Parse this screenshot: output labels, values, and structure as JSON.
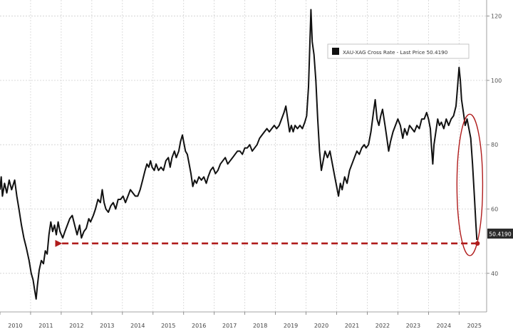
{
  "chart_data": {
    "type": "line",
    "legend": {
      "label": "XAU-XAG Cross Rate - Last Price 50.4190",
      "placement": "top-right"
    },
    "last_price_label": "50.4190",
    "y_ticks": [
      40,
      60,
      80,
      100,
      120
    ],
    "x_ticks": [
      "2010",
      "2011",
      "2012",
      "2013",
      "2014",
      "2015",
      "2016",
      "2017",
      "2018",
      "2019",
      "2020",
      "2021",
      "2022",
      "2023",
      "2024",
      "2025"
    ],
    "xlim": [
      2010.0,
      2025.9
    ],
    "ylim": [
      28,
      125
    ],
    "grid": true,
    "line_color": "#111111",
    "annotation_color": "#b01c1c",
    "annotation": {
      "type": "dashed-arrow",
      "from": [
        2025.6,
        49.3
      ],
      "to": [
        2011.8,
        49.3
      ]
    },
    "highlight": {
      "type": "ellipse",
      "center": [
        2025.35,
        67.5
      ],
      "rx_years": 0.42,
      "ry_units": 22
    },
    "series": [
      {
        "points": [
          [
            2010.0,
            66
          ],
          [
            2010.04,
            70
          ],
          [
            2010.08,
            64
          ],
          [
            2010.15,
            68
          ],
          [
            2010.22,
            65
          ],
          [
            2010.3,
            69
          ],
          [
            2010.38,
            66
          ],
          [
            2010.48,
            69
          ],
          [
            2010.55,
            64
          ],
          [
            2010.62,
            60
          ],
          [
            2010.7,
            55
          ],
          [
            2010.78,
            51
          ],
          [
            2010.86,
            48
          ],
          [
            2010.95,
            44
          ],
          [
            2011.02,
            40
          ],
          [
            2011.08,
            38
          ],
          [
            2011.13,
            35
          ],
          [
            2011.18,
            32
          ],
          [
            2011.22,
            36
          ],
          [
            2011.28,
            41
          ],
          [
            2011.35,
            44
          ],
          [
            2011.42,
            43
          ],
          [
            2011.48,
            47
          ],
          [
            2011.54,
            46
          ],
          [
            2011.6,
            52
          ],
          [
            2011.66,
            56
          ],
          [
            2011.72,
            53
          ],
          [
            2011.78,
            55
          ],
          [
            2011.84,
            52
          ],
          [
            2011.9,
            56
          ],
          [
            2011.96,
            53
          ],
          [
            2012.05,
            51
          ],
          [
            2012.12,
            53
          ],
          [
            2012.2,
            55
          ],
          [
            2012.28,
            57
          ],
          [
            2012.36,
            58
          ],
          [
            2012.44,
            55
          ],
          [
            2012.52,
            52
          ],
          [
            2012.6,
            55
          ],
          [
            2012.66,
            51
          ],
          [
            2012.74,
            53
          ],
          [
            2012.82,
            54
          ],
          [
            2012.9,
            57
          ],
          [
            2012.96,
            56
          ],
          [
            2013.05,
            58
          ],
          [
            2013.12,
            60
          ],
          [
            2013.2,
            63
          ],
          [
            2013.28,
            62
          ],
          [
            2013.34,
            66
          ],
          [
            2013.4,
            62
          ],
          [
            2013.46,
            60
          ],
          [
            2013.54,
            59
          ],
          [
            2013.62,
            61
          ],
          [
            2013.7,
            62
          ],
          [
            2013.78,
            60
          ],
          [
            2013.86,
            63
          ],
          [
            2013.94,
            63
          ],
          [
            2014.02,
            64
          ],
          [
            2014.1,
            62
          ],
          [
            2014.18,
            64
          ],
          [
            2014.26,
            66
          ],
          [
            2014.34,
            65
          ],
          [
            2014.42,
            64
          ],
          [
            2014.5,
            64
          ],
          [
            2014.58,
            66
          ],
          [
            2014.66,
            69
          ],
          [
            2014.74,
            72
          ],
          [
            2014.8,
            74
          ],
          [
            2014.86,
            73
          ],
          [
            2014.92,
            75
          ],
          [
            2014.97,
            73
          ],
          [
            2015.04,
            72
          ],
          [
            2015.1,
            74
          ],
          [
            2015.18,
            72
          ],
          [
            2015.26,
            73
          ],
          [
            2015.34,
            72
          ],
          [
            2015.42,
            75
          ],
          [
            2015.5,
            76
          ],
          [
            2015.56,
            73
          ],
          [
            2015.62,
            76
          ],
          [
            2015.7,
            78
          ],
          [
            2015.76,
            76
          ],
          [
            2015.84,
            78
          ],
          [
            2015.9,
            81
          ],
          [
            2015.96,
            83
          ],
          [
            2016.0,
            81
          ],
          [
            2016.06,
            78
          ],
          [
            2016.12,
            77
          ],
          [
            2016.18,
            74
          ],
          [
            2016.24,
            71
          ],
          [
            2016.3,
            67
          ],
          [
            2016.36,
            69
          ],
          [
            2016.42,
            68
          ],
          [
            2016.5,
            70
          ],
          [
            2016.58,
            69
          ],
          [
            2016.66,
            70
          ],
          [
            2016.74,
            68
          ],
          [
            2016.8,
            70
          ],
          [
            2016.88,
            72
          ],
          [
            2016.96,
            73
          ],
          [
            2017.04,
            71
          ],
          [
            2017.12,
            72
          ],
          [
            2017.2,
            74
          ],
          [
            2017.28,
            75
          ],
          [
            2017.36,
            76
          ],
          [
            2017.44,
            74
          ],
          [
            2017.52,
            75
          ],
          [
            2017.6,
            76
          ],
          [
            2017.68,
            77
          ],
          [
            2017.76,
            78
          ],
          [
            2017.84,
            78
          ],
          [
            2017.92,
            77
          ],
          [
            2018.0,
            79
          ],
          [
            2018.08,
            79
          ],
          [
            2018.16,
            80
          ],
          [
            2018.24,
            78
          ],
          [
            2018.32,
            79
          ],
          [
            2018.4,
            80
          ],
          [
            2018.48,
            82
          ],
          [
            2018.56,
            83
          ],
          [
            2018.64,
            84
          ],
          [
            2018.72,
            85
          ],
          [
            2018.8,
            84
          ],
          [
            2018.88,
            85
          ],
          [
            2018.96,
            86
          ],
          [
            2019.04,
            85
          ],
          [
            2019.12,
            86
          ],
          [
            2019.2,
            88
          ],
          [
            2019.28,
            90
          ],
          [
            2019.34,
            92
          ],
          [
            2019.4,
            88
          ],
          [
            2019.46,
            84
          ],
          [
            2019.52,
            86
          ],
          [
            2019.58,
            84
          ],
          [
            2019.64,
            86
          ],
          [
            2019.72,
            85
          ],
          [
            2019.8,
            86
          ],
          [
            2019.88,
            85
          ],
          [
            2019.96,
            87
          ],
          [
            2020.02,
            89
          ],
          [
            2020.08,
            98
          ],
          [
            2020.12,
            110
          ],
          [
            2020.16,
            122
          ],
          [
            2020.2,
            112
          ],
          [
            2020.26,
            108
          ],
          [
            2020.32,
            100
          ],
          [
            2020.38,
            88
          ],
          [
            2020.44,
            78
          ],
          [
            2020.5,
            72
          ],
          [
            2020.56,
            75
          ],
          [
            2020.62,
            78
          ],
          [
            2020.7,
            76
          ],
          [
            2020.78,
            78
          ],
          [
            2020.86,
            74
          ],
          [
            2020.94,
            70
          ],
          [
            2021.0,
            67
          ],
          [
            2021.06,
            64
          ],
          [
            2021.12,
            68
          ],
          [
            2021.18,
            66
          ],
          [
            2021.26,
            70
          ],
          [
            2021.34,
            68
          ],
          [
            2021.42,
            72
          ],
          [
            2021.5,
            74
          ],
          [
            2021.58,
            76
          ],
          [
            2021.66,
            78
          ],
          [
            2021.74,
            77
          ],
          [
            2021.82,
            79
          ],
          [
            2021.9,
            80
          ],
          [
            2021.96,
            79
          ],
          [
            2022.04,
            80
          ],
          [
            2022.12,
            84
          ],
          [
            2022.2,
            90
          ],
          [
            2022.26,
            94
          ],
          [
            2022.32,
            88
          ],
          [
            2022.38,
            86
          ],
          [
            2022.44,
            89
          ],
          [
            2022.5,
            91
          ],
          [
            2022.58,
            86
          ],
          [
            2022.64,
            82
          ],
          [
            2022.7,
            78
          ],
          [
            2022.76,
            81
          ],
          [
            2022.84,
            84
          ],
          [
            2022.92,
            86
          ],
          [
            2023.0,
            88
          ],
          [
            2023.08,
            86
          ],
          [
            2023.16,
            82
          ],
          [
            2023.22,
            85
          ],
          [
            2023.3,
            83
          ],
          [
            2023.38,
            86
          ],
          [
            2023.46,
            85
          ],
          [
            2023.54,
            84
          ],
          [
            2023.62,
            86
          ],
          [
            2023.7,
            85
          ],
          [
            2023.78,
            88
          ],
          [
            2023.86,
            88
          ],
          [
            2023.94,
            90
          ],
          [
            2024.0,
            88
          ],
          [
            2024.06,
            85
          ],
          [
            2024.1,
            79
          ],
          [
            2024.14,
            74
          ],
          [
            2024.18,
            80
          ],
          [
            2024.24,
            84
          ],
          [
            2024.3,
            88
          ],
          [
            2024.36,
            86
          ],
          [
            2024.42,
            87
          ],
          [
            2024.5,
            85
          ],
          [
            2024.58,
            88
          ],
          [
            2024.66,
            86
          ],
          [
            2024.74,
            88
          ],
          [
            2024.82,
            89
          ],
          [
            2024.9,
            92
          ],
          [
            2024.95,
            98
          ],
          [
            2025.0,
            104
          ],
          [
            2025.04,
            100
          ],
          [
            2025.08,
            94
          ],
          [
            2025.14,
            90
          ],
          [
            2025.2,
            86
          ],
          [
            2025.26,
            88
          ],
          [
            2025.32,
            85
          ],
          [
            2025.38,
            82
          ],
          [
            2025.44,
            74
          ],
          [
            2025.5,
            64
          ],
          [
            2025.55,
            55
          ],
          [
            2025.58,
            50.4
          ]
        ]
      }
    ]
  }
}
